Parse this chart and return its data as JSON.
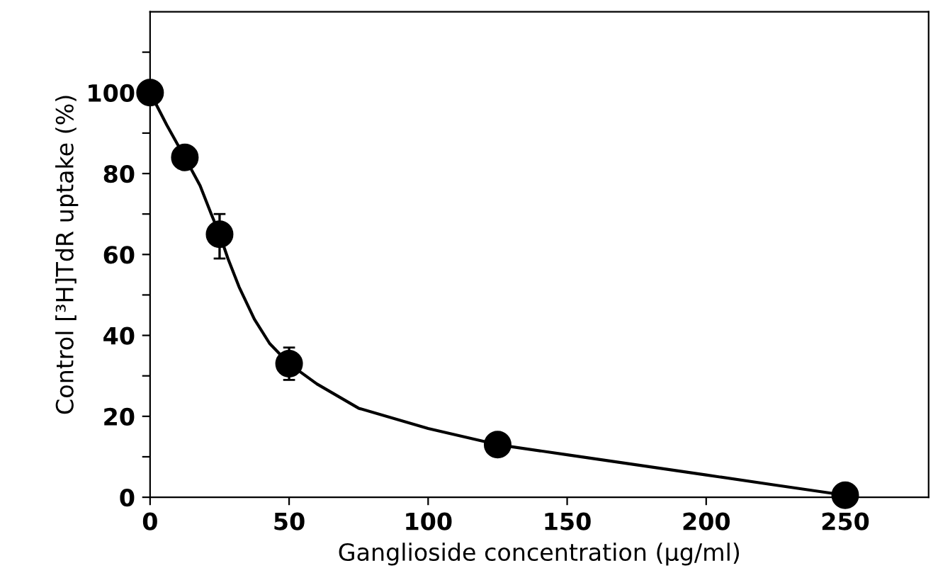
{
  "chart_data": {
    "type": "scatter",
    "xlabel": "Ganglioside concentration (µg/ml)",
    "ylabel": "Control [³H]TdR uptake (%)",
    "xlim": [
      0,
      280
    ],
    "ylim": [
      0,
      120
    ],
    "xticks": [
      0,
      50,
      100,
      150,
      200,
      250
    ],
    "yticks": [
      0,
      {
        "value": 10,
        "label": null
      },
      20,
      {
        "value": 30,
        "label": null
      },
      40,
      {
        "value": 50,
        "label": null
      },
      60,
      {
        "value": 70,
        "label": null
      },
      80,
      {
        "value": 90,
        "label": null
      },
      100,
      {
        "value": 110,
        "label": null
      }
    ],
    "grid": false,
    "legend": false,
    "series": [
      {
        "type": "line",
        "color": "#000000",
        "marker": "none",
        "line_style": "solid",
        "x": [
          0,
          6,
          12.5,
          18,
          22,
          25,
          28,
          32,
          37.5,
          43,
          50,
          60,
          75,
          100,
          125,
          150,
          175,
          200,
          225,
          250
        ],
        "values": [
          100,
          92,
          84,
          77,
          70,
          65,
          59,
          52,
          44,
          38,
          33,
          28,
          22,
          17,
          13,
          10.5,
          8,
          5.5,
          3,
          0.5
        ]
      },
      {
        "color": "#000000",
        "marker": "circle",
        "x": [
          0,
          12.5,
          25,
          50,
          125,
          250
        ],
        "values": [
          100,
          84,
          65,
          33,
          13,
          0.5
        ],
        "errors": [
          null,
          null,
          [
            59,
            70
          ],
          [
            29,
            37
          ],
          null,
          null
        ]
      }
    ]
  }
}
